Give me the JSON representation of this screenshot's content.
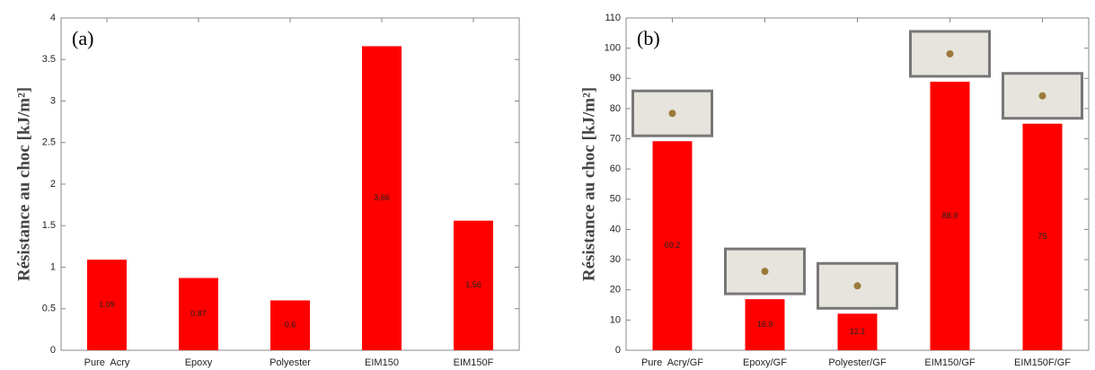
{
  "chart_data": [
    {
      "type": "bar",
      "panel_label": "(a)",
      "ylabel": "Résistance au choc [kJ/m²]",
      "categories": [
        "Pure  Acry",
        "Epoxy",
        "Polyester",
        "EIM150",
        "EIM150F"
      ],
      "values": [
        1.09,
        0.87,
        0.6,
        3.66,
        1.56
      ],
      "color": "#ff0000",
      "ylim": [
        0,
        4
      ],
      "yticks": [
        0,
        0.5,
        1,
        1.5,
        2,
        2.5,
        3,
        3.5,
        4
      ]
    },
    {
      "type": "bar",
      "panel_label": "(b)",
      "ylabel": "Résistance au choc [kJ/m²]",
      "categories": [
        "Pure  Acry/GF",
        "Epoxy/GF",
        "Polyester/GF",
        "EIM150/GF",
        "EIM150F/GF"
      ],
      "values": [
        69.2,
        16.9,
        12.1,
        88.9,
        75
      ],
      "color": "#ff0000",
      "ylim": [
        0,
        110
      ],
      "yticks": [
        0,
        10,
        20,
        30,
        40,
        50,
        60,
        70,
        80,
        90,
        100,
        110
      ]
    }
  ]
}
